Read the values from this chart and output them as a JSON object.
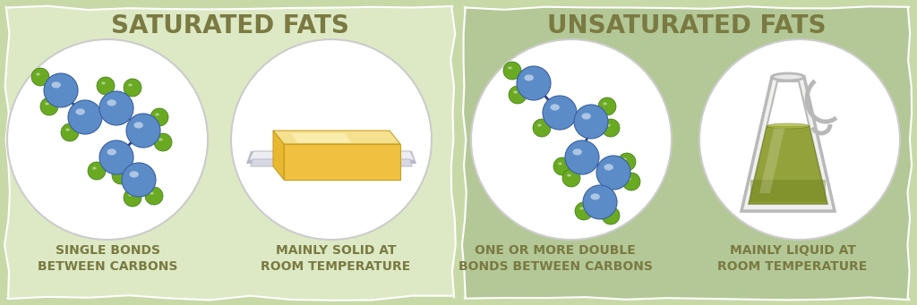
{
  "bg_left": "#dde9c4",
  "bg_right": "#b3c896",
  "bg_overall": "#c8d9a8",
  "title_left": "SATURATED FATS",
  "title_right": "UNSATURATED FATS",
  "title_color": "#7a7a42",
  "label1_left": "SINGLE BONDS\nBETWEEN CARBONS",
  "label2_left": "MAINLY SOLID AT\nROOM TEMPERATURE",
  "label1_right": "ONE OR MORE DOUBLE\nBONDS BETWEEN CARBONS",
  "label2_right": "MAINLY LIQUID AT\nROOM TEMPERATURE",
  "label_color": "#7a7a42",
  "node_blue": "#5b8cc8",
  "node_blue_dark": "#3a5fa0",
  "node_green": "#6aaa22",
  "bond_color": "#2a3a80",
  "butter_top": "#f5e090",
  "butter_top2": "#f0d060",
  "butter_side": "#e8b830",
  "butter_front": "#f0c040",
  "plate_light": "#ececf2",
  "plate_mid": "#d8d8e4",
  "plate_shadow": "#b8b8c8",
  "oil_color": "#8a9a2a",
  "oil_dark": "#6a7a18",
  "oil_light": "#aab840",
  "pitcher_stroke": "#b8b8b8",
  "pitcher_fill": "#f0f0ee",
  "font_size_title": 20,
  "font_size_label": 10
}
